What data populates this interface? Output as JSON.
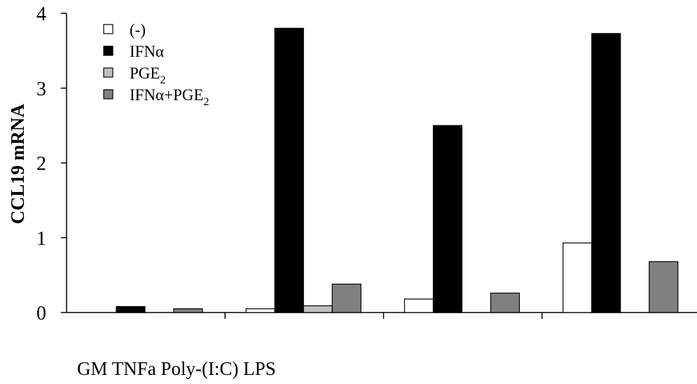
{
  "chart_data": {
    "type": "bar",
    "ylabel": "CCL19 mRNA",
    "ylim": [
      0,
      4
    ],
    "yticks": [
      "0",
      "1",
      "2",
      "3",
      "4"
    ],
    "categories": [
      "GM",
      "TNFa",
      "Poly-(I:C)",
      "LPS"
    ],
    "legend_position": "top-left",
    "series": [
      {
        "key": "neg",
        "name": "(-)",
        "color": "#ffffff",
        "values": [
          0,
          0.05,
          0.18,
          0.93
        ]
      },
      {
        "key": "ifn",
        "name": "IFNα",
        "color": "#000000",
        "values": [
          0.08,
          3.8,
          2.5,
          3.73
        ]
      },
      {
        "key": "pge",
        "name": "PGE2",
        "label_main": "PGE",
        "label_sub": "2",
        "color": "#c0c0c0",
        "values": [
          0,
          0.09,
          0,
          0
        ]
      },
      {
        "key": "ifnpge",
        "name": "IFNα+PGE2",
        "label_main": "IFNα+PGE",
        "label_sub": "2",
        "color": "#808080",
        "values": [
          0.05,
          0.38,
          0.26,
          0.68
        ]
      }
    ]
  }
}
